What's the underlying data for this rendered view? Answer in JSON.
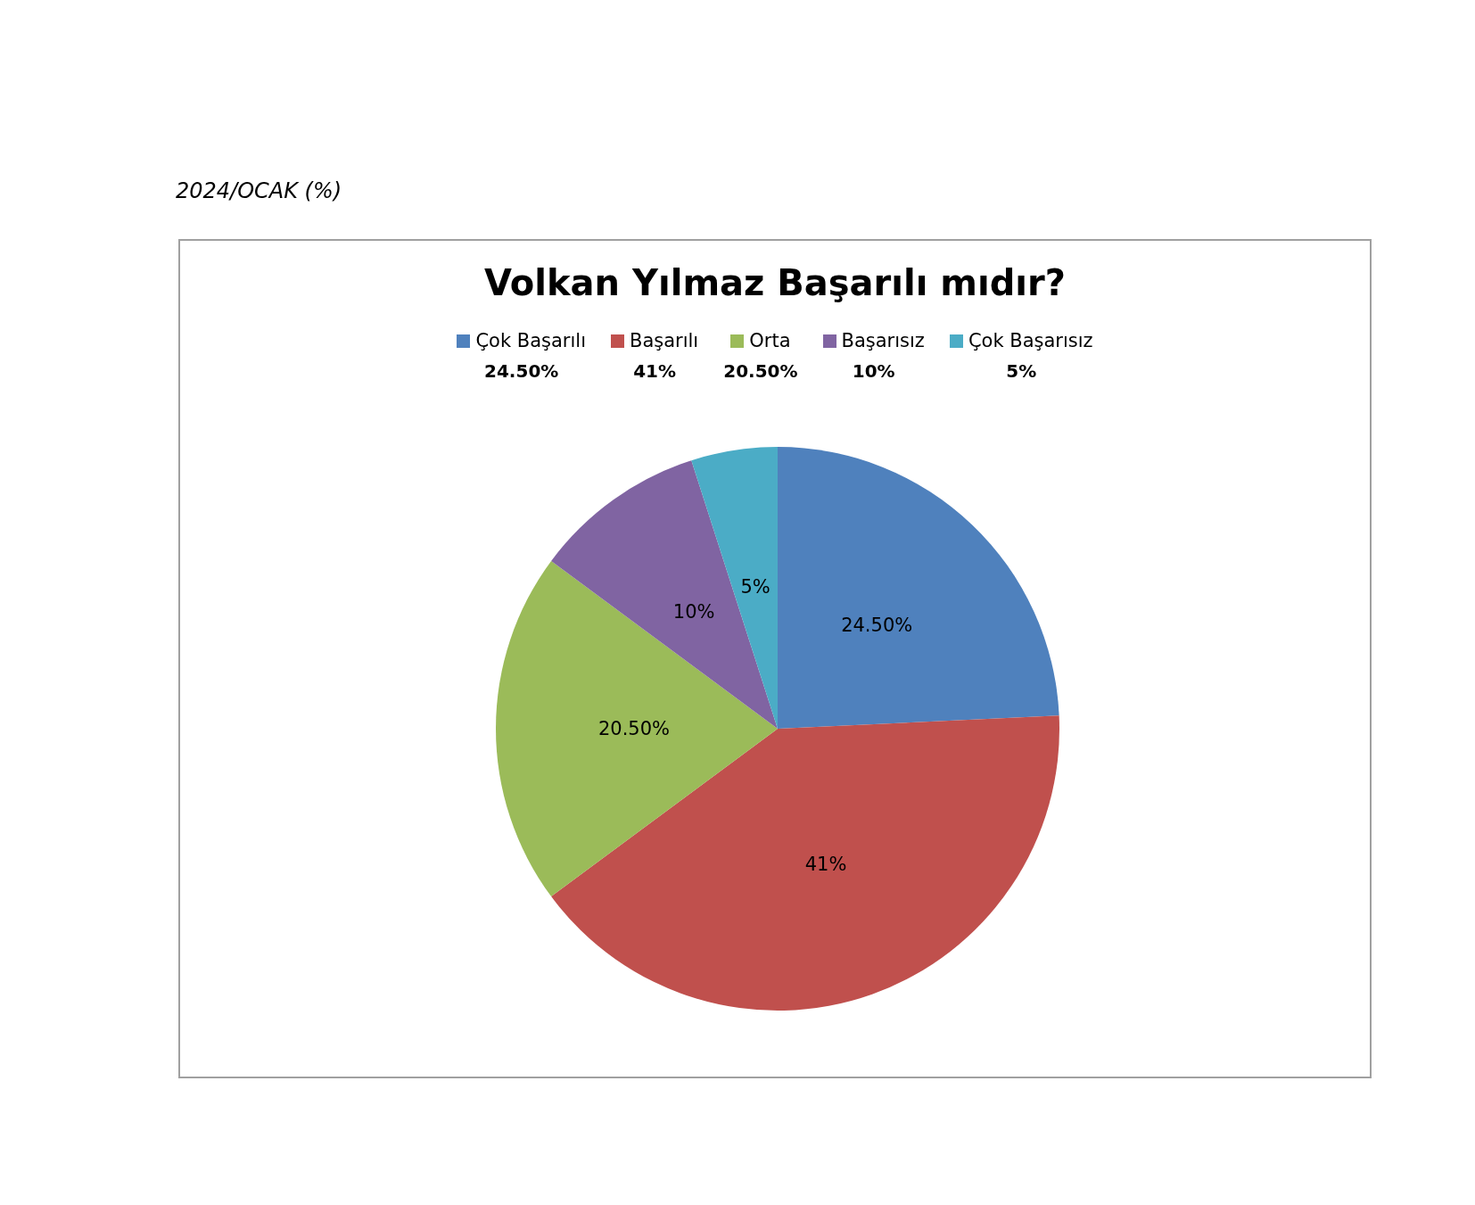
{
  "chart_data": {
    "type": "pie",
    "title": "Volkan Yılmaz Başarılı mıdır?",
    "subtitle": "2024/OCAK (%)",
    "categories": [
      "Çok Başarılı",
      "Başarılı",
      "Orta",
      "Başarısız",
      "Çok Başarısız"
    ],
    "values": [
      24.5,
      41,
      20.5,
      10,
      5
    ],
    "colors": [
      "#4f81bd",
      "#c0504d",
      "#9bbb59",
      "#8064a2",
      "#4bacc6"
    ],
    "value_labels": [
      "24.50%",
      "41%",
      "20.50%",
      "10%",
      "5%"
    ],
    "legend": "top"
  }
}
